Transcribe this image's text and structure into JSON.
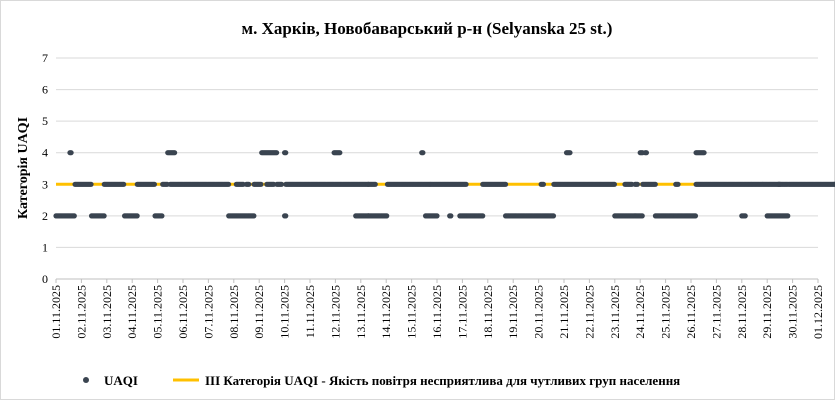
{
  "chart_data": {
    "type": "scatter",
    "title": "м. Харків, Новобаварський р-н (Selyanska 25 st.)",
    "ylabel": "Категорія UAQI",
    "xlabel": "",
    "ylim": [
      0,
      7
    ],
    "yticks": [
      "0",
      "1",
      "2",
      "3",
      "4",
      "5",
      "6",
      "7"
    ],
    "xticks": [
      "01.11.2025",
      "02.11.2025",
      "03.11.2025",
      "04.11.2025",
      "05.11.2025",
      "06.11.2025",
      "07.11.2025",
      "08.11.2025",
      "09.11.2025",
      "10.11.2025",
      "11.11.2025",
      "12.11.2025",
      "13.11.2025",
      "14.11.2025",
      "15.11.2025",
      "16.11.2025",
      "17.11.2025",
      "18.11.2025",
      "19.11.2025",
      "20.11.2025",
      "21.11.2025",
      "22.11.2025",
      "23.11.2025",
      "24.11.2025",
      "25.11.2025",
      "26.11.2025",
      "27.11.2025",
      "28.11.2025",
      "29.11.2025",
      "30.11.2025",
      "01.12.2025"
    ],
    "grid": "horizontal",
    "legend_position": "bottom",
    "series": [
      {
        "name": "UAQI",
        "kind": "points",
        "color": "#3a4450",
        "runs": [
          {
            "start": 0.0,
            "end": 0.75,
            "value": 2
          },
          {
            "start": 0.55,
            "end": 0.6,
            "value": 4
          },
          {
            "start": 0.75,
            "end": 1.4,
            "value": 3
          },
          {
            "start": 1.4,
            "end": 1.9,
            "value": 2
          },
          {
            "start": 1.9,
            "end": 2.7,
            "value": 3
          },
          {
            "start": 2.7,
            "end": 3.2,
            "value": 2
          },
          {
            "start": 3.2,
            "end": 3.9,
            "value": 3
          },
          {
            "start": 3.9,
            "end": 4.2,
            "value": 2
          },
          {
            "start": 4.2,
            "end": 4.4,
            "value": 3
          },
          {
            "start": 4.4,
            "end": 4.7,
            "value": 4
          },
          {
            "start": 4.5,
            "end": 6.8,
            "value": 3
          },
          {
            "start": 6.8,
            "end": 7.8,
            "value": 2
          },
          {
            "start": 7.1,
            "end": 7.4,
            "value": 3
          },
          {
            "start": 7.5,
            "end": 7.6,
            "value": 3
          },
          {
            "start": 7.8,
            "end": 8.1,
            "value": 3
          },
          {
            "start": 8.1,
            "end": 8.7,
            "value": 4
          },
          {
            "start": 8.3,
            "end": 8.6,
            "value": 3
          },
          {
            "start": 8.7,
            "end": 8.9,
            "value": 3
          },
          {
            "start": 9.0,
            "end": 9.05,
            "value": 4
          },
          {
            "start": 9.0,
            "end": 9.05,
            "value": 2
          },
          {
            "start": 9.05,
            "end": 12.3,
            "value": 3
          },
          {
            "start": 10.95,
            "end": 11.2,
            "value": 4
          },
          {
            "start": 11.8,
            "end": 12.3,
            "value": 2
          },
          {
            "start": 12.3,
            "end": 13.05,
            "value": 2
          },
          {
            "start": 12.3,
            "end": 12.6,
            "value": 3
          },
          {
            "start": 13.05,
            "end": 14.75,
            "value": 3
          },
          {
            "start": 14.4,
            "end": 14.45,
            "value": 4
          },
          {
            "start": 14.55,
            "end": 15.0,
            "value": 2
          },
          {
            "start": 14.75,
            "end": 16.15,
            "value": 3
          },
          {
            "start": 15.5,
            "end": 15.55,
            "value": 2
          },
          {
            "start": 15.9,
            "end": 16.8,
            "value": 2
          },
          {
            "start": 16.8,
            "end": 17.7,
            "value": 3
          },
          {
            "start": 17.7,
            "end": 18.1,
            "value": 2
          },
          {
            "start": 18.1,
            "end": 19.6,
            "value": 2
          },
          {
            "start": 19.1,
            "end": 19.2,
            "value": 3
          },
          {
            "start": 19.6,
            "end": 22.0,
            "value": 3
          },
          {
            "start": 20.1,
            "end": 20.25,
            "value": 4
          },
          {
            "start": 22.0,
            "end": 23.1,
            "value": 2
          },
          {
            "start": 22.4,
            "end": 22.7,
            "value": 3
          },
          {
            "start": 22.8,
            "end": 22.9,
            "value": 3
          },
          {
            "start": 23.0,
            "end": 23.1,
            "value": 4
          },
          {
            "start": 23.2,
            "end": 23.25,
            "value": 4
          },
          {
            "start": 23.1,
            "end": 23.6,
            "value": 3
          },
          {
            "start": 23.6,
            "end": 25.2,
            "value": 2
          },
          {
            "start": 24.4,
            "end": 24.5,
            "value": 3
          },
          {
            "start": 25.2,
            "end": 25.55,
            "value": 4
          },
          {
            "start": 25.2,
            "end": 27.4,
            "value": 3
          },
          {
            "start": 27.0,
            "end": 27.15,
            "value": 2
          },
          {
            "start": 27.4,
            "end": 28.8,
            "value": 3
          },
          {
            "start": 28.0,
            "end": 28.85,
            "value": 2
          },
          {
            "start": 28.45,
            "end": 28.5,
            "value": 3
          },
          {
            "start": 28.85,
            "end": 31.0,
            "value": 3
          }
        ]
      },
      {
        "name": "III Категорія UAQI - Якість повітря несприятлива для чутливих груп населення",
        "kind": "line",
        "color": "#ffc000",
        "value": 3
      }
    ]
  }
}
